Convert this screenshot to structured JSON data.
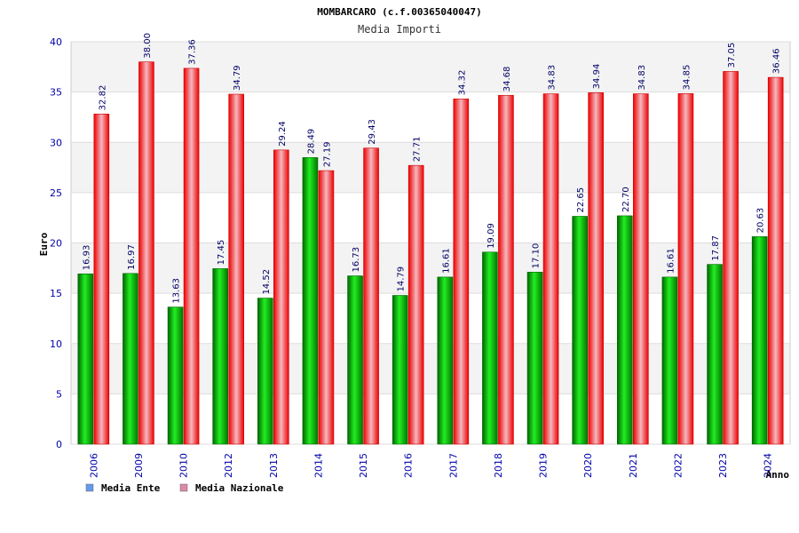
{
  "chart_data": {
    "type": "bar",
    "title": "MOMBARCARO (c.f.00365040047)",
    "subtitle": "Media Importi",
    "ylabel": "Euro",
    "xlabel": "Anno",
    "ylim": [
      0,
      40
    ],
    "yticks": [
      "0",
      "5",
      "10",
      "15",
      "20",
      "25",
      "30",
      "35",
      "40"
    ],
    "grid": true,
    "legend_position": "bottom-left",
    "categories": [
      "2006",
      "2009",
      "2010",
      "2012",
      "2013",
      "2014",
      "2015",
      "2016",
      "2017",
      "2018",
      "2019",
      "2020",
      "2021",
      "2022",
      "2023",
      "2024"
    ],
    "series": [
      {
        "name": "Media Ente",
        "color": "#00aa00",
        "legend_color": "#6699ee",
        "values": [
          16.93,
          16.97,
          13.63,
          17.45,
          14.52,
          28.49,
          16.73,
          14.79,
          16.61,
          19.09,
          17.1,
          22.65,
          22.7,
          16.61,
          17.87,
          20.63
        ],
        "labels": [
          "16.93",
          "16.97",
          "13.63",
          "17.45",
          "14.52",
          "28.49",
          "16.73",
          "14.79",
          "16.61",
          "19.09",
          "17.10",
          "22.65",
          "22.70",
          "16.61",
          "17.87",
          "20.63"
        ]
      },
      {
        "name": "Media Nazionale",
        "color": "#ee0000",
        "legend_color": "#dd88aa",
        "values": [
          32.82,
          38.0,
          37.36,
          34.79,
          29.24,
          27.19,
          29.43,
          27.71,
          34.32,
          34.68,
          34.83,
          34.94,
          34.83,
          34.85,
          37.05,
          36.46
        ],
        "labels": [
          "32.82",
          "38.00",
          "37.36",
          "34.79",
          "29.24",
          "27.19",
          "29.43",
          "27.71",
          "34.32",
          "34.68",
          "34.83",
          "34.94",
          "34.83",
          "34.85",
          "37.05",
          "36.46"
        ]
      }
    ]
  }
}
